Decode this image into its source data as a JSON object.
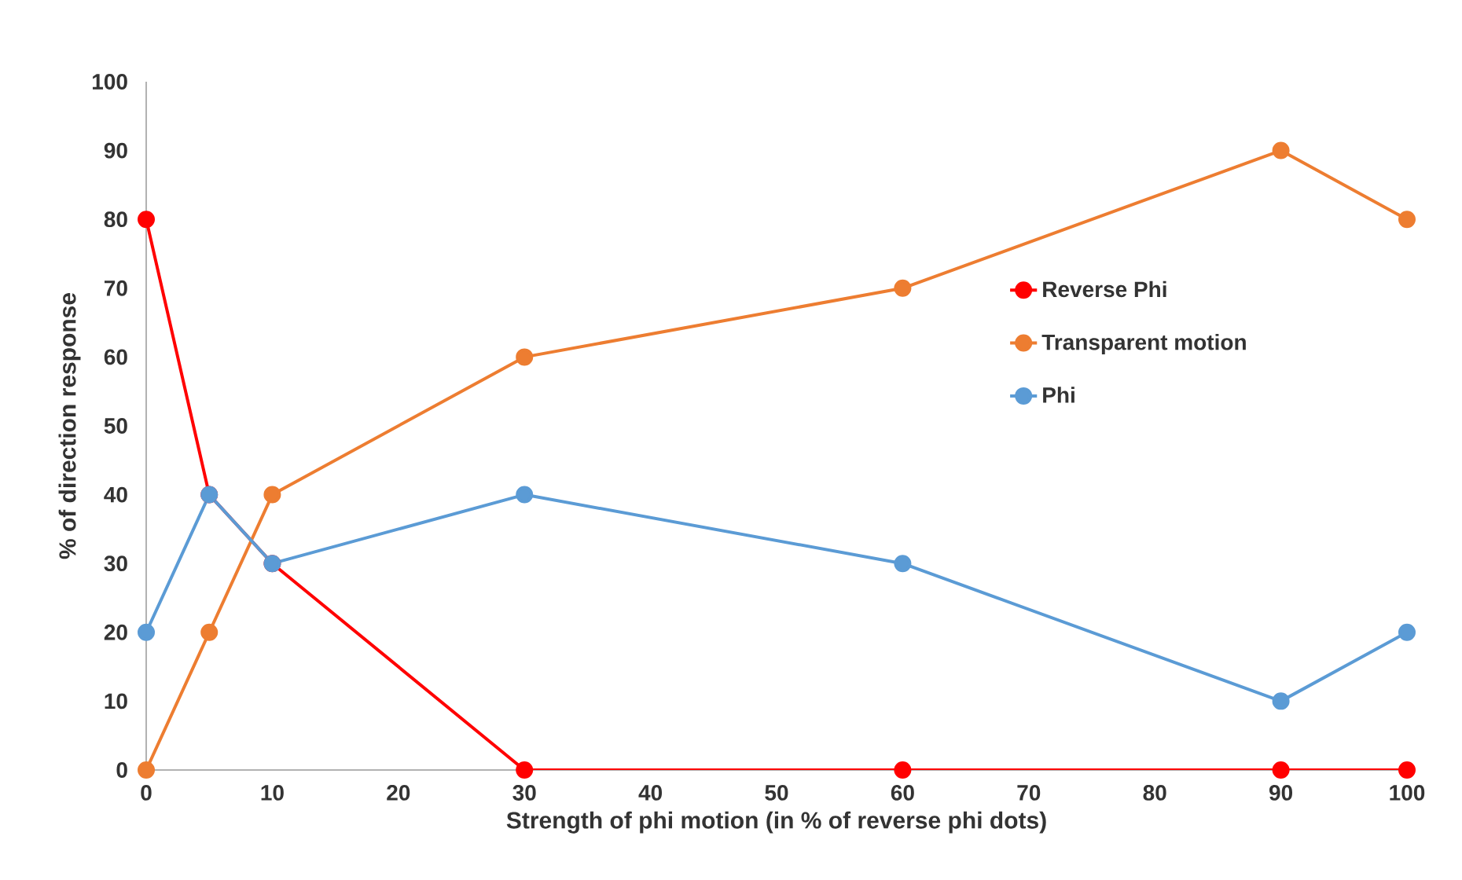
{
  "chart_data": {
    "type": "line",
    "xlabel": "Strength of phi motion (in % of reverse phi dots)",
    "ylabel": "% of direction response",
    "x": [
      0,
      5,
      10,
      30,
      60,
      90,
      100
    ],
    "series": [
      {
        "name": "Reverse Phi",
        "color": "#ff0000",
        "values": [
          80,
          40,
          30,
          0,
          0,
          0,
          0
        ]
      },
      {
        "name": "Transparent motion",
        "color": "#ed7d31",
        "values": [
          0,
          20,
          40,
          60,
          70,
          90,
          80
        ]
      },
      {
        "name": "Phi",
        "color": "#5b9bd5",
        "values": [
          20,
          40,
          30,
          40,
          30,
          10,
          20
        ]
      }
    ],
    "xlim": [
      0,
      100
    ],
    "xticks": [
      0,
      10,
      20,
      30,
      40,
      50,
      60,
      70,
      80,
      90,
      100
    ],
    "ylim": [
      0,
      100
    ],
    "yticks": [
      0,
      10,
      20,
      30,
      40,
      50,
      60,
      70,
      80,
      90,
      100
    ],
    "grid": false,
    "legend": "right",
    "marker": "circle",
    "line_style": "solid"
  }
}
